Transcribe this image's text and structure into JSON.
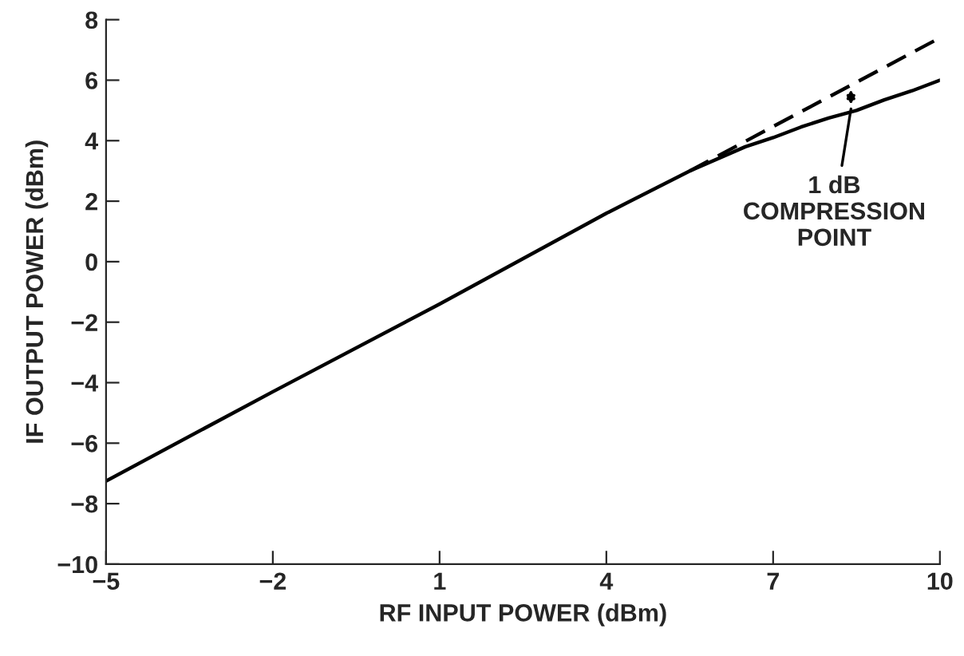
{
  "chart_data": {
    "type": "line",
    "xlabel": "RF INPUT POWER (dBm)",
    "ylabel": "IF OUTPUT POWER (dBm)",
    "series": [
      {
        "color": "#000000",
        "line_style": "solid",
        "x": [
          -5,
          -2,
          1,
          4,
          5.5,
          6.5,
          7,
          7.5,
          8,
          8.5,
          9,
          9.5,
          10
        ],
        "values": [
          -7.25,
          -4.3,
          -1.4,
          1.6,
          3.0,
          3.8,
          4.1,
          4.45,
          4.75,
          5.0,
          5.35,
          5.65,
          6.0
        ]
      },
      {
        "color": "#000000",
        "line_style": "dashed",
        "x": [
          5.5,
          10
        ],
        "values": [
          3.0,
          7.4
        ]
      }
    ],
    "xlim": [
      -5,
      10
    ],
    "xticks": [
      {
        "value": -5,
        "label": "−5"
      },
      {
        "value": -2,
        "label": "−2"
      },
      1,
      4,
      7,
      10
    ],
    "ylim": [
      -10,
      8
    ],
    "yticks": [
      {
        "value": -10,
        "label": "−10"
      },
      {
        "value": -8,
        "label": "−8"
      },
      {
        "value": -6,
        "label": "−6"
      },
      {
        "value": -4,
        "label": "−4"
      },
      {
        "value": -2,
        "label": "−2"
      },
      0,
      2,
      4,
      6,
      8
    ],
    "annotations": [
      {
        "text": "1 dB\nCOMPRESSION\nPOINT",
        "x": 8.4,
        "y": 5.05
      }
    ],
    "grid": false,
    "legend": false,
    "marker": "none"
  }
}
